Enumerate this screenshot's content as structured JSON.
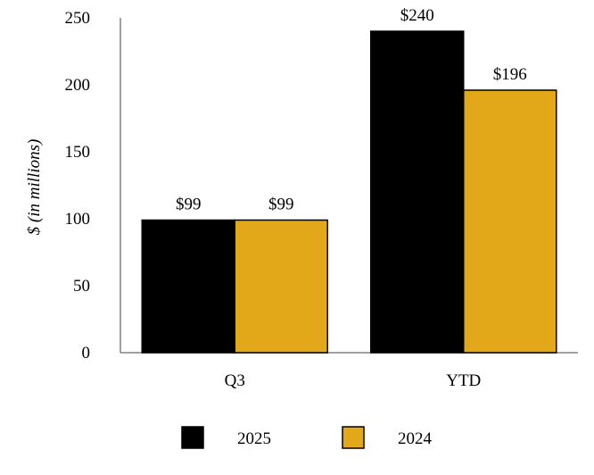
{
  "chart_data": {
    "type": "bar",
    "title": "",
    "xlabel": "",
    "ylabel": "$ (in millions)",
    "ylim": [
      0,
      250
    ],
    "yticks": [
      0,
      50,
      100,
      150,
      200,
      250
    ],
    "grid": false,
    "categories": [
      "Q3",
      "YTD"
    ],
    "series": [
      {
        "name": "2025",
        "color": "#000000",
        "values": [
          99,
          240
        ],
        "labels": [
          "$99",
          "$240"
        ]
      },
      {
        "name": "2024",
        "color": "#E3A81A",
        "values": [
          99,
          196
        ],
        "labels": [
          "$99",
          "$196"
        ]
      }
    ],
    "legend_position": "bottom"
  }
}
